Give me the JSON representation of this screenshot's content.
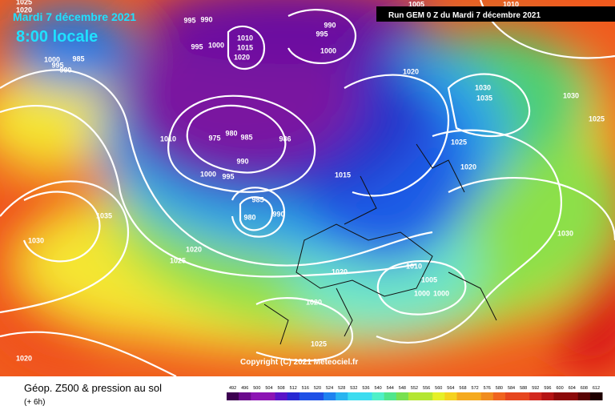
{
  "header": {
    "date": "Mardi 7 décembre 2021",
    "time": "8:00 locale",
    "run": "Run GEM 0 Z du Mardi 7 décembre 2021"
  },
  "copyright": "Copyright (C) 2021 Meteociel.fr",
  "footer": {
    "title": "Géop. Z500 & pression au sol",
    "step": "(+ 6h)"
  },
  "legend": {
    "labels": [
      "492",
      "496",
      "500",
      "504",
      "508",
      "512",
      "516",
      "520",
      "524",
      "528",
      "532",
      "536",
      "540",
      "544",
      "548",
      "552",
      "556",
      "560",
      "564",
      "568",
      "572",
      "576",
      "580",
      "584",
      "588",
      "592",
      "596",
      "600",
      "604",
      "608",
      "612"
    ]
  },
  "pressure_labels": [
    "1025",
    "1020",
    "1000",
    "985",
    "990",
    "995",
    "995",
    "990",
    "995",
    "1000",
    "1010",
    "1015",
    "1020",
    "995",
    "990",
    "1000",
    "1005",
    "1010",
    "1020",
    "1030",
    "1035",
    "1030",
    "1025",
    "1025",
    "1020",
    "1010",
    "975",
    "980",
    "985",
    "986",
    "990",
    "1000",
    "995",
    "1015",
    "985",
    "980",
    "990",
    "1035",
    "1030",
    "1020",
    "1025",
    "1030",
    "1020",
    "1010",
    "1005",
    "1000",
    "1000",
    "1020",
    "1025",
    "1020"
  ]
}
